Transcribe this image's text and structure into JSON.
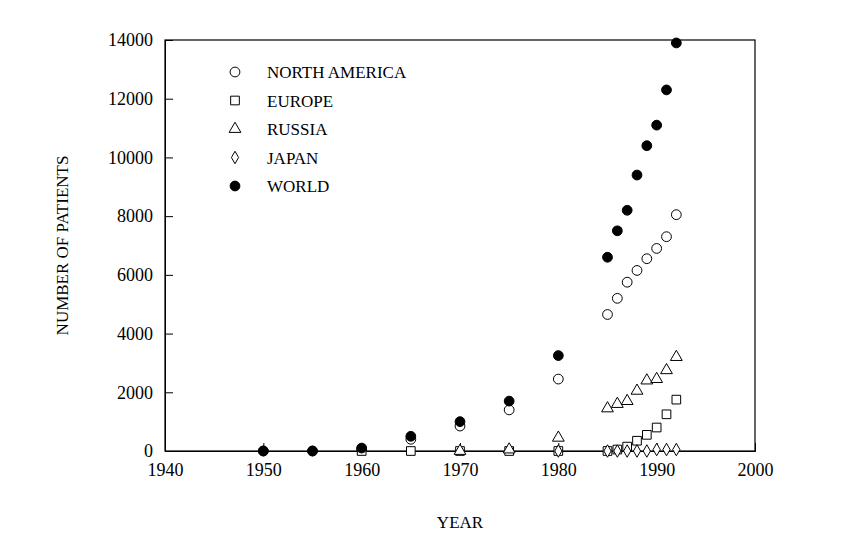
{
  "chart_data": {
    "type": "scatter",
    "x_label": "YEAR",
    "y_label": "NUMBER OF PATIENTS",
    "xlim": [
      1940,
      2000
    ],
    "xticks": [
      1940,
      1950,
      1960,
      1970,
      1980,
      1990,
      2000
    ],
    "ylim": [
      0,
      14000
    ],
    "yticks": [
      0,
      2000,
      4000,
      6000,
      8000,
      10000,
      12000,
      14000
    ],
    "grid": false,
    "legend": "upper left",
    "series": [
      {
        "name": "NORTH AMERICA",
        "color": "#000000",
        "marker": "circle-open",
        "x": [
          1950,
          1955,
          1960,
          1965,
          1970,
          1975,
          1980,
          1985,
          1986,
          1987,
          1988,
          1989,
          1990,
          1991,
          1992
        ],
        "values": [
          0,
          0,
          50,
          400,
          850,
          1400,
          2450,
          4650,
          5200,
          5750,
          6150,
          6550,
          6900,
          7300,
          8050
        ]
      },
      {
        "name": "EUROPE",
        "color": "#000000",
        "marker": "square-open",
        "x": [
          1960,
          1965,
          1970,
          1975,
          1980,
          1985,
          1986,
          1987,
          1988,
          1989,
          1990,
          1991,
          1992
        ],
        "values": [
          0,
          0,
          0,
          0,
          0,
          0,
          50,
          150,
          350,
          550,
          800,
          1250,
          1750
        ]
      },
      {
        "name": "RUSSIA",
        "color": "#000000",
        "marker": "triangle-open",
        "x": [
          1970,
          1975,
          1980,
          1985,
          1986,
          1987,
          1988,
          1989,
          1990,
          1991,
          1992
        ],
        "values": [
          0,
          50,
          450,
          1450,
          1600,
          1700,
          2050,
          2400,
          2450,
          2750,
          3200
        ]
      },
      {
        "name": "JAPAN",
        "color": "#000000",
        "marker": "diamond-open",
        "x": [
          1980,
          1985,
          1986,
          1987,
          1988,
          1989,
          1990,
          1991,
          1992
        ],
        "values": [
          0,
          0,
          0,
          0,
          0,
          0,
          50,
          50,
          50
        ]
      },
      {
        "name": "WORLD",
        "color": "#000000",
        "marker": "circle-filled",
        "x": [
          1950,
          1955,
          1960,
          1965,
          1970,
          1975,
          1980,
          1985,
          1986,
          1987,
          1988,
          1989,
          1990,
          1991,
          1992
        ],
        "values": [
          0,
          0,
          100,
          500,
          1000,
          1700,
          3250,
          6600,
          7500,
          8200,
          9400,
          10400,
          11100,
          12300,
          13900
        ]
      }
    ]
  }
}
